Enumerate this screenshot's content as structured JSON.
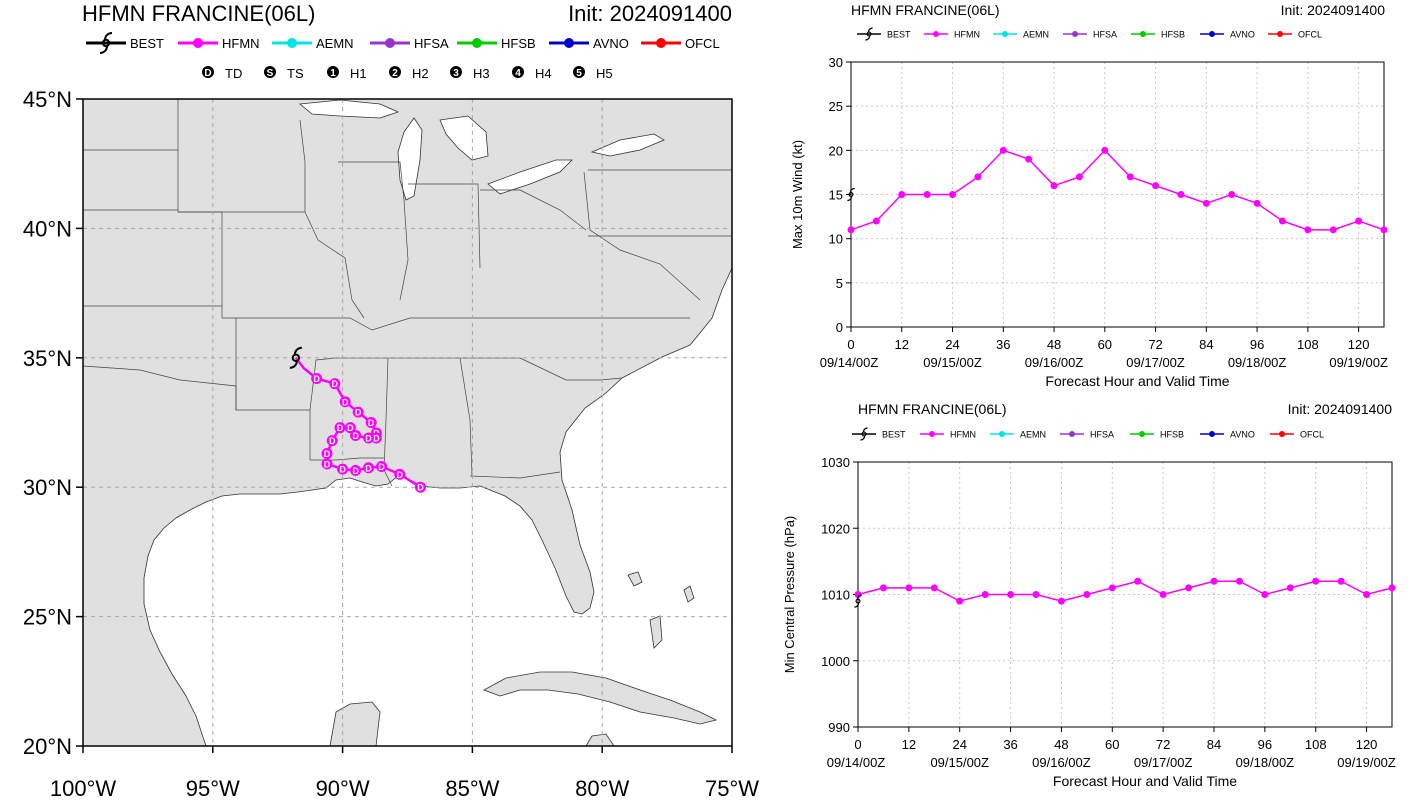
{
  "colors": {
    "best": "#000000",
    "hfmn": "#ff00ff",
    "aemn": "#00e5e5",
    "hfsa": "#9933cc",
    "hfsb": "#00cc00",
    "avno": "#0000cc",
    "ofcl": "#ff0000",
    "land": "#e0e0e0",
    "grid": "#a8a8a8"
  },
  "map_panel": {
    "title": "HFMN FRANCINE(06L)",
    "init": "Init: 2024091400",
    "legend": [
      "BEST",
      "HFMN",
      "AEMN",
      "HFSA",
      "HFSB",
      "AVNO",
      "OFCL"
    ],
    "legend_icons": [
      "best-track-icon",
      "line-dot-icon",
      "line-dot-icon",
      "line-dot-icon",
      "line-dot-icon",
      "line-dot-icon",
      "line-dot-icon"
    ],
    "intensity_legend": [
      {
        "symbol": "D",
        "label": "TD"
      },
      {
        "symbol": "S",
        "label": "TS"
      },
      {
        "symbol": "1",
        "label": "H1"
      },
      {
        "symbol": "2",
        "label": "H2"
      },
      {
        "symbol": "3",
        "label": "H3"
      },
      {
        "symbol": "4",
        "label": "H4"
      },
      {
        "symbol": "5",
        "label": "H5"
      }
    ],
    "lat_labels": [
      "45°N",
      "40°N",
      "35°N",
      "30°N",
      "25°N",
      "20°N"
    ],
    "lon_labels": [
      "100°W",
      "95°W",
      "90°W",
      "85°W",
      "80°W",
      "75°W"
    ]
  },
  "chart_data": [
    {
      "type": "line",
      "title": "HFMN FRANCINE(06L)",
      "subtitle": "Init: 2024091400",
      "xlabel": "Forecast Hour and Valid Time",
      "ylabel": "Max 10m Wind (kt)",
      "xlim": [
        0,
        126
      ],
      "ylim": [
        0,
        30
      ],
      "xticks": [
        0,
        12,
        24,
        36,
        48,
        60,
        72,
        84,
        96,
        108,
        120
      ],
      "yticks": [
        0,
        5,
        10,
        15,
        20,
        25,
        30
      ],
      "date_labels": [
        {
          "hour": 0,
          "label": "09/14/00Z"
        },
        {
          "hour": 24,
          "label": "09/15/00Z"
        },
        {
          "hour": 48,
          "label": "09/16/00Z"
        },
        {
          "hour": 72,
          "label": "09/17/00Z"
        },
        {
          "hour": 96,
          "label": "09/18/00Z"
        },
        {
          "hour": 120,
          "label": "09/19/00Z"
        }
      ],
      "grid": true,
      "legend": [
        "BEST",
        "HFMN",
        "AEMN",
        "HFSA",
        "HFSB",
        "AVNO",
        "OFCL"
      ],
      "series": [
        {
          "name": "HFMN",
          "x": [
            0,
            6,
            12,
            18,
            24,
            30,
            36,
            42,
            48,
            54,
            60,
            66,
            72,
            78,
            84,
            90,
            96,
            102,
            108,
            114,
            120,
            126
          ],
          "values": [
            11,
            12,
            15,
            15,
            15,
            17,
            20,
            19,
            16,
            17,
            20,
            17,
            16,
            15,
            14,
            15,
            14,
            12,
            11,
            11,
            12,
            11
          ]
        },
        {
          "name": "BEST",
          "x": [
            0
          ],
          "values": [
            15
          ]
        }
      ]
    },
    {
      "type": "line",
      "title": "HFMN FRANCINE(06L)",
      "subtitle": "Init: 2024091400",
      "xlabel": "Forecast Hour and Valid Time",
      "ylabel": "Min Central Pressure (hPa)",
      "xlim": [
        0,
        126
      ],
      "ylim": [
        990,
        1030
      ],
      "xticks": [
        0,
        12,
        24,
        36,
        48,
        60,
        72,
        84,
        96,
        108,
        120
      ],
      "yticks": [
        990,
        1000,
        1010,
        1020,
        1030
      ],
      "date_labels": [
        {
          "hour": 0,
          "label": "09/14/00Z"
        },
        {
          "hour": 24,
          "label": "09/15/00Z"
        },
        {
          "hour": 48,
          "label": "09/16/00Z"
        },
        {
          "hour": 72,
          "label": "09/17/00Z"
        },
        {
          "hour": 96,
          "label": "09/18/00Z"
        },
        {
          "hour": 120,
          "label": "09/19/00Z"
        }
      ],
      "grid": true,
      "legend": [
        "BEST",
        "HFMN",
        "AEMN",
        "HFSA",
        "HFSB",
        "AVNO",
        "OFCL"
      ],
      "series": [
        {
          "name": "HFMN",
          "x": [
            0,
            6,
            12,
            18,
            24,
            30,
            36,
            42,
            48,
            54,
            60,
            66,
            72,
            78,
            84,
            90,
            96,
            102,
            108,
            114,
            120,
            126
          ],
          "values": [
            1010,
            1011,
            1011,
            1011,
            1009,
            1010,
            1010,
            1010,
            1009,
            1010,
            1011,
            1012,
            1010,
            1011,
            1012,
            1012,
            1010,
            1011,
            1012,
            1012,
            1010,
            1011
          ]
        },
        {
          "name": "BEST",
          "x": [
            0
          ],
          "values": [
            1009
          ]
        }
      ]
    }
  ],
  "track": {
    "best": {
      "lon": -91.8,
      "lat": 35.0,
      "symbol": "BEST"
    },
    "hfmn": [
      {
        "lon": -91.5,
        "lat": 34.6,
        "symbol": ""
      },
      {
        "lon": -91.0,
        "lat": 34.2,
        "symbol": "D"
      },
      {
        "lon": -90.3,
        "lat": 34.0,
        "symbol": "D"
      },
      {
        "lon": -89.9,
        "lat": 33.3,
        "symbol": "D"
      },
      {
        "lon": -89.4,
        "lat": 32.9,
        "symbol": "D"
      },
      {
        "lon": -88.9,
        "lat": 32.5,
        "symbol": "D"
      },
      {
        "lon": -88.7,
        "lat": 32.1,
        "symbol": "D"
      },
      {
        "lon": -88.7,
        "lat": 31.9,
        "symbol": "D"
      },
      {
        "lon": -89.0,
        "lat": 31.9,
        "symbol": "D"
      },
      {
        "lon": -89.5,
        "lat": 32.0,
        "symbol": "D"
      },
      {
        "lon": -89.7,
        "lat": 32.3,
        "symbol": "D"
      },
      {
        "lon": -90.1,
        "lat": 32.3,
        "symbol": "D"
      },
      {
        "lon": -90.4,
        "lat": 31.8,
        "symbol": "D"
      },
      {
        "lon": -90.6,
        "lat": 31.3,
        "symbol": "D"
      },
      {
        "lon": -90.6,
        "lat": 30.9,
        "symbol": "D"
      },
      {
        "lon": -90.0,
        "lat": 30.7,
        "symbol": "D"
      },
      {
        "lon": -89.5,
        "lat": 30.65,
        "symbol": "D"
      },
      {
        "lon": -89.0,
        "lat": 30.75,
        "symbol": "D"
      },
      {
        "lon": -88.5,
        "lat": 30.8,
        "symbol": "D"
      },
      {
        "lon": -87.8,
        "lat": 30.5,
        "symbol": "D"
      },
      {
        "lon": -87.0,
        "lat": 30.0,
        "symbol": "D"
      }
    ]
  }
}
